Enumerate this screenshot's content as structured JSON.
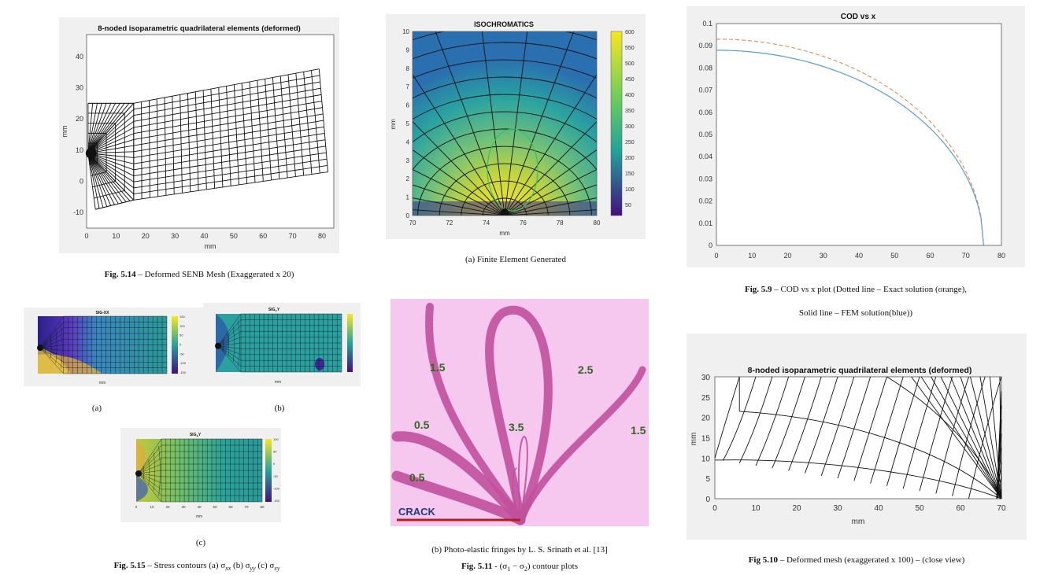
{
  "fig514": {
    "title": "8-noded isoparametric quadrilateral elements (deformed)",
    "xlabel": "mm",
    "ylabel": "mm",
    "xticks": [
      "0",
      "10",
      "20",
      "30",
      "40",
      "50",
      "60",
      "70",
      "80"
    ],
    "yticks": [
      "40",
      "30",
      "20",
      "10",
      "0",
      "-10"
    ],
    "caption_bold": "Fig. 5.14",
    "caption_text": " – Deformed SENB Mesh (Exaggerated x 20)"
  },
  "fig511a": {
    "title": "ISOCHROMATICS",
    "xlabel": "mm",
    "ylabel": "mm",
    "xticks": [
      "70",
      "72",
      "74",
      "76",
      "78",
      "80"
    ],
    "yticks": [
      "10",
      "9",
      "8",
      "7",
      "6",
      "5",
      "4",
      "3",
      "2",
      "1",
      "0"
    ],
    "cbar": [
      "600",
      "550",
      "500",
      "450",
      "400",
      "350",
      "300",
      "250",
      "200",
      "150",
      "100",
      "50"
    ],
    "caption": "(a)  Finite Element Generated"
  },
  "fig59": {
    "title": "COD vs x",
    "xticks": [
      "0",
      "10",
      "20",
      "30",
      "40",
      "50",
      "60",
      "70",
      "80"
    ],
    "yticks": [
      "0.1",
      "0.09",
      "0.08",
      "0.07",
      "0.06",
      "0.05",
      "0.04",
      "0.03",
      "0.02",
      "0.01",
      "0"
    ],
    "caption_bold": "Fig. 5.9",
    "caption_text": " – COD vs x plot (Dotted line – Exact solution (orange),",
    "caption_line2": "Solid line – FEM solution(blue))"
  },
  "fig515": {
    "sub_a_title": "SIG-XX",
    "sub_b_title": "SIG",
    "sub_b_sub": "Y",
    "sub_b_tail": "Y",
    "sub_c_title": "SIG",
    "sub_c_sub": "X",
    "sub_c_tail": "Y",
    "label_a": "(a)",
    "label_b": "(b)",
    "label_c": "(c)",
    "axis_unit": "mm",
    "cbar_a": [
      "150",
      "100",
      "50",
      "0",
      "-50",
      "-100",
      "-150"
    ],
    "cbar_c": [
      "100",
      "50",
      "0",
      "-50",
      "-100",
      "-150"
    ],
    "xticks": [
      "0",
      "10",
      "20",
      "30",
      "40",
      "50",
      "60",
      "70",
      "80"
    ],
    "yticks": [
      "30",
      "20",
      "10",
      "0"
    ],
    "caption_bold": "Fig. 5.15",
    "caption_text": " – Stress contours (a) σ",
    "caption_s1": "xx",
    "caption_mid1": "  (b) σ",
    "caption_s2": "yy",
    "caption_mid2": "  (c) σ",
    "caption_s3": "xy"
  },
  "fig511b": {
    "fringe_labels": [
      "1.5",
      "2.5",
      "0.5",
      "3.5",
      "1.5",
      "0.5"
    ],
    "crack_label": "CRACK",
    "caption": "(b) Photo-elastic fringes by L. S. Srinath et al. [13]",
    "fig_bold": "Fig. 5.11",
    "fig_text": " - (σ",
    "fig_s1": "1",
    "fig_mid": " − σ",
    "fig_s2": "2",
    "fig_tail": ") contour plots"
  },
  "fig510": {
    "title": "8-noded isoparametric quadrilateral elements (deformed)",
    "xlabel": "mm",
    "ylabel": "mm",
    "xticks": [
      "0",
      "10",
      "20",
      "30",
      "40",
      "50",
      "60",
      "70"
    ],
    "yticks": [
      "30",
      "25",
      "20",
      "15",
      "10",
      "5",
      "0"
    ],
    "caption_bold": "Fig 5.10",
    "caption_text": " – Deformed mesh (exaggerated x 100) – (close view)"
  },
  "colors": {
    "panel_bg": "#f0f0f0",
    "fem_line": "#5b9bd5",
    "exact_line": "#e08a5a",
    "fringe_bg": "#f6c8ef",
    "fringe": "#c0509c",
    "crack": "#b02020",
    "crack_text": "#1e3c7a",
    "fringe_text": "#2e6a1e"
  }
}
